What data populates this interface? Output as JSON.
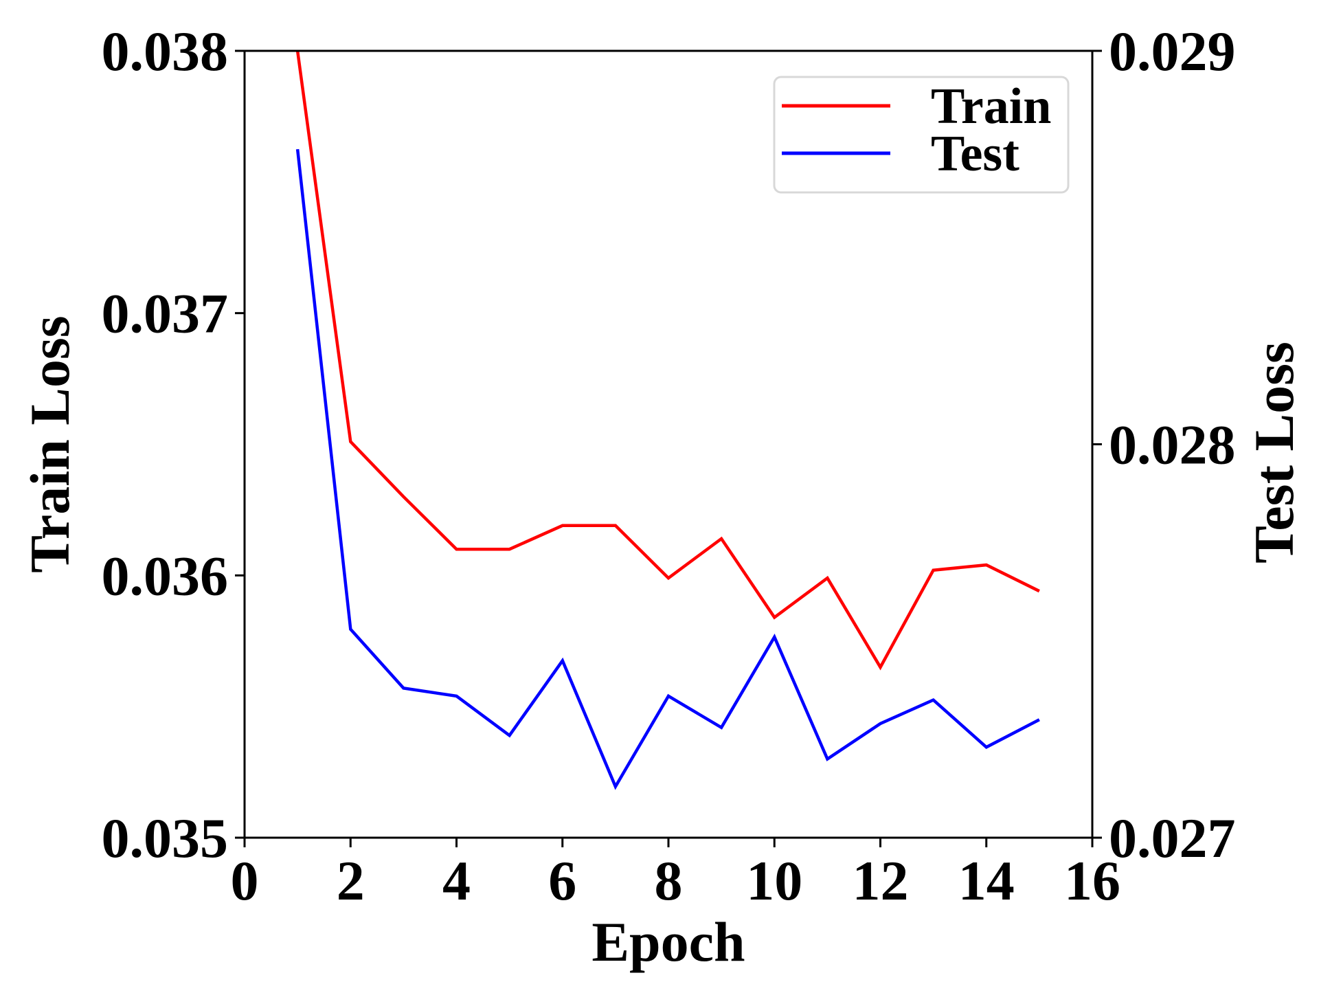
{
  "chart_data": {
    "type": "line",
    "xlabel": "Epoch",
    "ylabel_left": "Train Loss",
    "ylabel_right": "Test Loss",
    "xlim": [
      0,
      16
    ],
    "ylim_left": [
      0.035,
      0.038
    ],
    "ylim_right": [
      0.027,
      0.029
    ],
    "xticks": [
      0,
      2,
      4,
      6,
      8,
      10,
      12,
      14,
      16
    ],
    "xtick_labels": [
      "0",
      "2",
      "4",
      "6",
      "8",
      "10",
      "12",
      "14",
      "16"
    ],
    "yticks_left": [
      0.035,
      0.036,
      0.037,
      0.038
    ],
    "ytick_labels_left": [
      "0.035",
      "0.036",
      "0.037",
      "0.038"
    ],
    "yticks_right": [
      0.027,
      0.028,
      0.029
    ],
    "ytick_labels_right": [
      "0.027",
      "0.028",
      "0.029"
    ],
    "grid": false,
    "legend_position": "top-right",
    "x": [
      1,
      2,
      3,
      4,
      5,
      6,
      7,
      8,
      9,
      10,
      11,
      12,
      13,
      14,
      15
    ],
    "series": [
      {
        "name": "Train",
        "axis": "left",
        "color": "#ff0000",
        "values": [
          0.038,
          0.03651,
          0.0363,
          0.0361,
          0.0361,
          0.03619,
          0.03619,
          0.03599,
          0.03614,
          0.03584,
          0.03599,
          0.03565,
          0.03602,
          0.03604,
          0.03594
        ]
      },
      {
        "name": "Test",
        "axis": "right",
        "color": "#0000ff",
        "values": [
          0.02875,
          0.02753,
          0.02738,
          0.02736,
          0.02726,
          0.02745,
          0.02713,
          0.02736,
          0.02728,
          0.02751,
          0.0272,
          0.02729,
          0.02735,
          0.02723,
          0.0273
        ]
      }
    ]
  }
}
